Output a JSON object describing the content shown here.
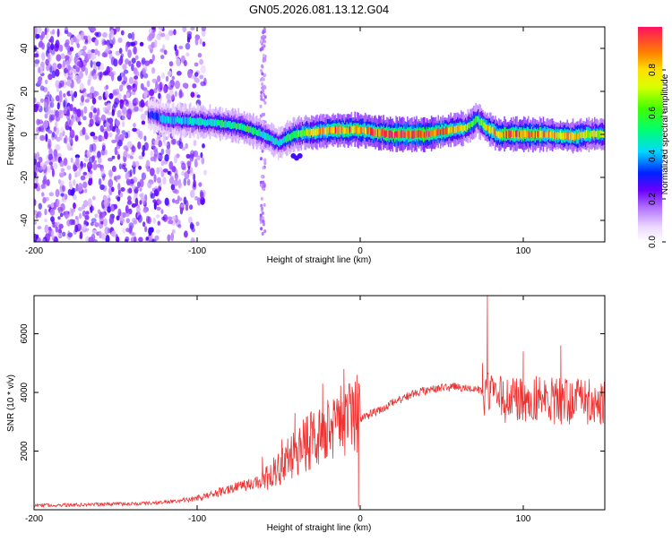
{
  "title": "GN05.2026.081.13.12.G04",
  "chart_data": [
    {
      "type": "heatmap",
      "xlabel": "Height of straight line (km)",
      "ylabel": "Frequency (Hz)",
      "xlim": [
        -200,
        150
      ],
      "ylim": [
        -50,
        50
      ],
      "xticks": [
        -200,
        -100,
        0,
        100
      ],
      "xtick_labels": [
        "-200",
        "-100",
        "0",
        "100"
      ],
      "yticks": [
        -40,
        -20,
        0,
        20,
        40
      ],
      "ytick_labels": [
        "-40",
        "-20",
        "0",
        "20",
        "40"
      ],
      "colorbar": {
        "label": "Normalized spectral amplitude",
        "range": [
          0,
          1
        ],
        "ticks": [
          0.0,
          0.2,
          0.4,
          0.6,
          0.8
        ],
        "tick_labels": [
          "0.0",
          "0.2",
          "0.4",
          "0.6",
          "0.8"
        ]
      },
      "ridge": {
        "x": [
          -128,
          -120,
          -100,
          -85,
          -70,
          -60,
          -50,
          -40,
          -30,
          -15,
          0,
          20,
          40,
          55,
          65,
          72,
          78,
          85,
          90,
          100,
          115,
          130,
          140,
          150
        ],
        "freq": [
          9,
          7,
          6,
          5,
          3,
          0,
          -4,
          0,
          1,
          2,
          2,
          0,
          0,
          2,
          3,
          7,
          3,
          0,
          0,
          0,
          0,
          -1,
          0,
          0
        ],
        "amplitude": [
          0.3,
          0.4,
          0.45,
          0.5,
          0.55,
          0.5,
          0.45,
          0.6,
          0.75,
          0.9,
          0.85,
          0.95,
          0.95,
          0.85,
          0.7,
          0.6,
          0.75,
          0.85,
          0.9,
          0.9,
          0.85,
          0.8,
          0.75,
          0.7
        ]
      }
    },
    {
      "type": "line",
      "xlabel": "Height of straight line (km)",
      "ylabel": "SNR (10 * v/v)",
      "xlim": [
        -200,
        150
      ],
      "ylim": [
        0,
        7300
      ],
      "xticks": [
        -200,
        -100,
        0,
        100
      ],
      "xtick_labels": [
        "-200",
        "-100",
        "0",
        "100"
      ],
      "yticks": [
        2000,
        4000,
        6000
      ],
      "ytick_labels": [
        "2000",
        "4000",
        "6000"
      ],
      "color": "#ee3333",
      "envelope": {
        "x": [
          -200,
          -160,
          -130,
          -110,
          -100,
          -90,
          -80,
          -70,
          -60,
          -50,
          -40,
          -30,
          -20,
          -10,
          0,
          10,
          20,
          30,
          40,
          50,
          60,
          70,
          80,
          90,
          100,
          120,
          140,
          150
        ],
        "y": [
          150,
          180,
          220,
          300,
          400,
          550,
          700,
          850,
          950,
          1300,
          1900,
          2300,
          2600,
          2900,
          3100,
          3350,
          3650,
          3900,
          4050,
          4150,
          4200,
          4150,
          3850,
          3750,
          3800,
          3700,
          3650,
          3650
        ]
      },
      "spikes": [
        {
          "x": -60,
          "y": 1800
        },
        {
          "x": -48,
          "y": 2400
        },
        {
          "x": -40,
          "y": 3300
        },
        {
          "x": -23,
          "y": 4300
        },
        {
          "x": -10,
          "y": 4800
        },
        {
          "x": -2,
          "y": 4600
        },
        {
          "x": 75,
          "y": 5000
        },
        {
          "x": 78,
          "y": 7300
        },
        {
          "x": 100,
          "y": 5400
        },
        {
          "x": 123,
          "y": 5600
        }
      ],
      "minimum": {
        "x": -1,
        "y": 100
      }
    }
  ]
}
